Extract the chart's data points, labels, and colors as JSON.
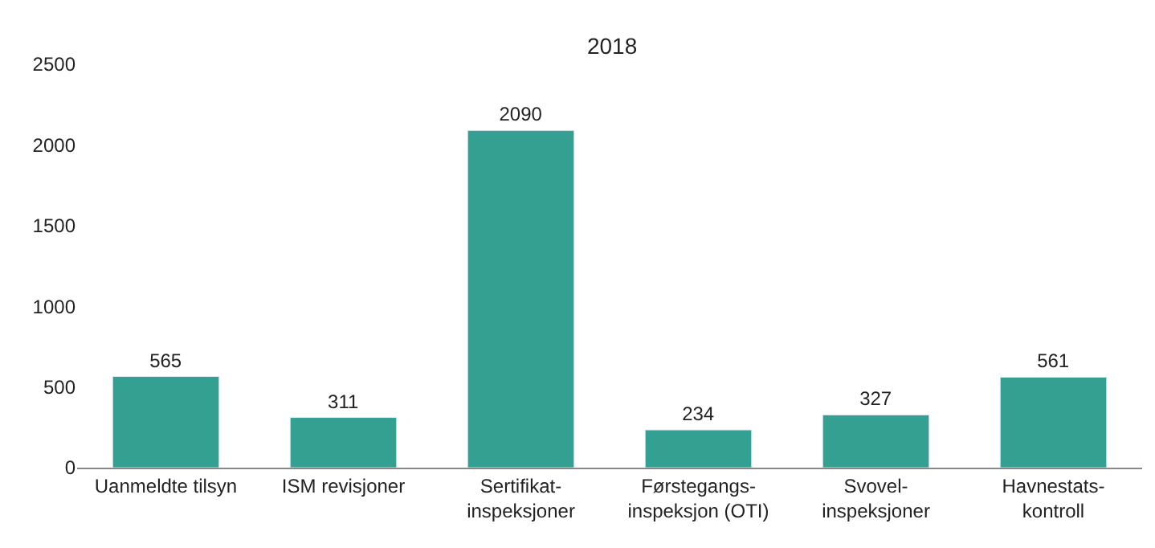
{
  "chart_data": {
    "type": "bar",
    "title": "2018",
    "categories": [
      "Uanmeldte tilsyn",
      "ISM revisjoner",
      "Sertifikat-\ninspeksjoner",
      "Førstegangs-\ninspeksjon (OTI)",
      "Svovel-\ninspeksjoner",
      "Havnestats-\nkontroll"
    ],
    "values": [
      565,
      311,
      2090,
      234,
      327,
      561
    ],
    "color": "#33a091",
    "ylim": [
      0,
      2500
    ],
    "yticks": [
      0,
      500,
      1000,
      1500,
      2000,
      2500
    ],
    "data_labels": true
  }
}
